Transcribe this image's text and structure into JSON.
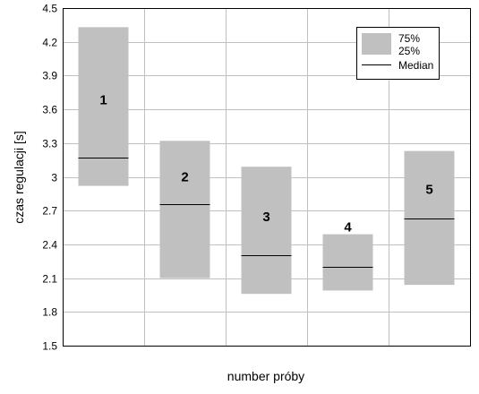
{
  "chart_data": {
    "type": "boxplot",
    "title": "",
    "xlabel": "number próby",
    "ylabel": "czas regulacji [s]",
    "ylim": [
      1.5,
      4.5
    ],
    "yticks": [
      "1.5",
      "1.8",
      "2.1",
      "2.4",
      "2.7",
      "3",
      "3.3",
      "3.6",
      "3.9",
      "4.2",
      "4.5"
    ],
    "grid": true,
    "legend_position": "top-right",
    "legend": [
      {
        "label": "75%",
        "kind": "box-top"
      },
      {
        "label": "25%",
        "kind": "box-bottom"
      },
      {
        "label": "Median",
        "kind": "line"
      }
    ],
    "categories": [
      "1",
      "2",
      "3",
      "4",
      "5"
    ],
    "q1": [
      2.92,
      2.1,
      1.96,
      1.99,
      2.04
    ],
    "median": [
      3.17,
      2.76,
      2.3,
      2.2,
      2.63
    ],
    "q3": [
      4.33,
      3.32,
      3.09,
      2.49,
      3.23
    ],
    "box_color": "#c0c0c0",
    "grid_color": "#c0c0c0"
  }
}
